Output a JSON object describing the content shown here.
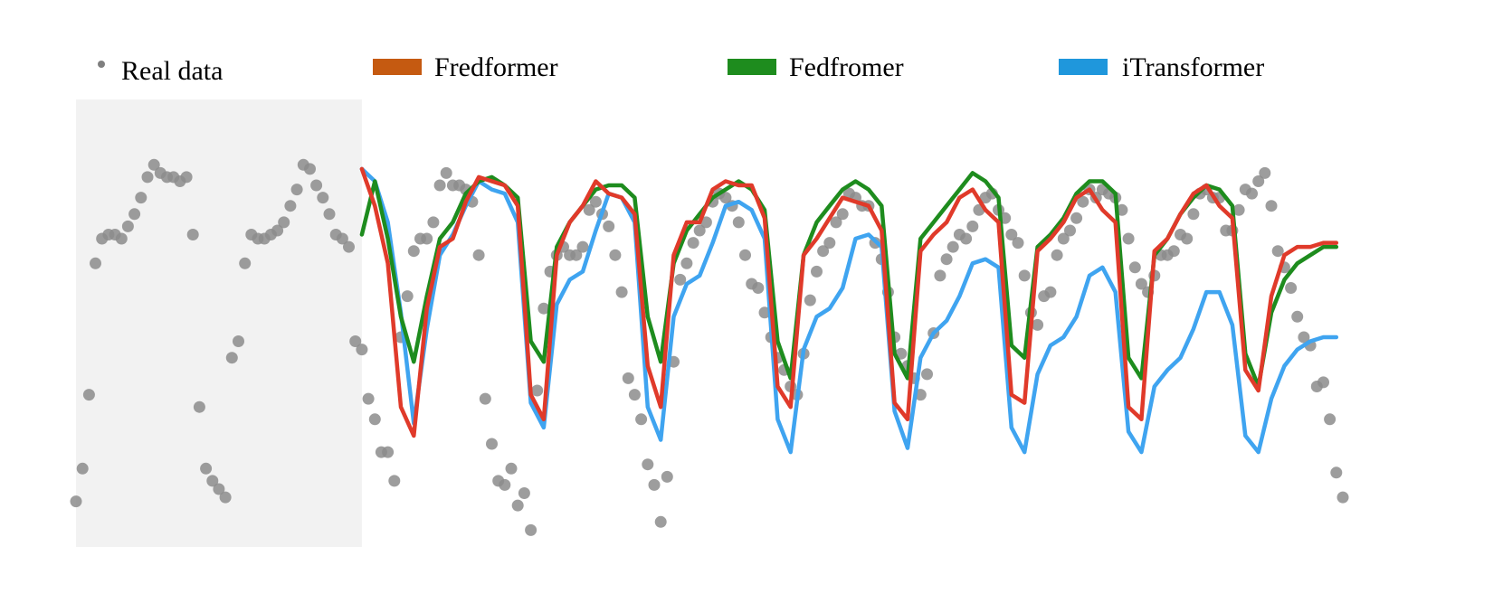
{
  "chart_data": {
    "type": "line",
    "title": "",
    "xlabel": "",
    "ylabel": "",
    "xlim": [
      0,
      195
    ],
    "ylim": [
      0,
      100
    ],
    "grid": false,
    "legend_position": "top",
    "lookback_region": {
      "x_start": 0,
      "x_end": 44,
      "color": "#f2f2f2"
    },
    "legend": [
      {
        "name": "Real data",
        "marker": "dot",
        "color": "#7f7f7f"
      },
      {
        "name": "Fredformer",
        "marker": "bar",
        "color": "#c55a11"
      },
      {
        "name": "Fedfromer",
        "marker": "bar",
        "color": "#1e8c1e"
      },
      {
        "name": "iTransformer",
        "marker": "bar",
        "color": "#1f97dc"
      }
    ],
    "real_data": {
      "name": "Real data",
      "color": "#7f7f7f",
      "x": [
        0,
        1,
        2,
        3,
        4,
        5,
        6,
        7,
        8,
        9,
        10,
        11,
        12,
        13,
        14,
        15,
        16,
        17,
        18,
        19,
        20,
        21,
        22,
        23,
        24,
        25,
        26,
        27,
        28,
        29,
        30,
        31,
        32,
        33,
        34,
        35,
        36,
        37,
        38,
        39,
        40,
        41,
        42,
        43,
        44,
        45,
        46,
        47,
        48,
        49,
        50,
        51,
        52,
        53,
        54,
        55,
        56,
        57,
        58,
        59,
        60,
        61,
        62,
        63,
        64,
        65,
        66,
        67,
        68,
        69,
        70,
        71,
        72,
        73,
        74,
        75,
        76,
        77,
        78,
        79,
        80,
        81,
        82,
        83,
        84,
        85,
        86,
        87,
        88,
        89,
        90,
        91,
        92,
        93,
        94,
        95,
        96,
        97,
        98,
        99,
        100,
        101,
        102,
        103,
        104,
        105,
        106,
        107,
        108,
        109,
        110,
        111,
        112,
        113,
        114,
        115,
        116,
        117,
        118,
        119,
        120,
        121,
        122,
        123,
        124,
        125,
        126,
        127,
        128,
        129,
        130,
        131,
        132,
        133,
        134,
        135,
        136,
        137,
        138,
        139,
        140,
        141,
        142,
        143,
        144,
        145,
        146,
        147,
        148,
        149,
        150,
        151,
        152,
        153,
        154,
        155,
        156,
        157,
        158,
        159,
        160,
        161,
        162,
        163,
        164,
        165,
        166,
        167,
        168,
        169,
        170,
        171,
        172,
        173,
        174,
        175,
        176,
        177,
        178,
        179,
        180,
        181,
        182,
        183,
        184,
        185,
        186,
        187,
        188,
        189,
        190,
        191,
        192,
        193,
        194,
        195
      ],
      "values": [
        10,
        18,
        36,
        68,
        74,
        75,
        75,
        74,
        77,
        80,
        84,
        89,
        92,
        90,
        89,
        89,
        88,
        89,
        75,
        33,
        18,
        15,
        13,
        11,
        45,
        49,
        68,
        75,
        74,
        74,
        75,
        76,
        78,
        82,
        86,
        92,
        91,
        87,
        84,
        80,
        75,
        74,
        72,
        49,
        47,
        35,
        30,
        22,
        22,
        15,
        50,
        60,
        71,
        74,
        74,
        78,
        87,
        90,
        87,
        87,
        86,
        83,
        70,
        35,
        24,
        15,
        14,
        18,
        9,
        12,
        3,
        37,
        57,
        66,
        70,
        72,
        70,
        70,
        72,
        81,
        83,
        80,
        77,
        70,
        61,
        40,
        36,
        30,
        19,
        14,
        5,
        16,
        44,
        64,
        68,
        73,
        76,
        78,
        83,
        85,
        84,
        82,
        78,
        70,
        63,
        62,
        56,
        50,
        45,
        42,
        38,
        36,
        46,
        59,
        66,
        71,
        73,
        78,
        80,
        85,
        84,
        82,
        82,
        73,
        69,
        61,
        50,
        46,
        43,
        40,
        36,
        41,
        51,
        65,
        69,
        72,
        75,
        74,
        77,
        81,
        84,
        85,
        81,
        79,
        75,
        73,
        65,
        56,
        53,
        60,
        61,
        70,
        74,
        76,
        79,
        83,
        86,
        84,
        86,
        85,
        84,
        81,
        74,
        67,
        63,
        61,
        65,
        70,
        70,
        71,
        75,
        74,
        80,
        85,
        86,
        84,
        84,
        76,
        76,
        81,
        86,
        85,
        88,
        90,
        82,
        71,
        67,
        62,
        55,
        50,
        48,
        38,
        39,
        30,
        17,
        11
      ],
      "count_shown": 196
    },
    "series": [
      {
        "name": "Fredformer",
        "color": "#e03a2a",
        "x": [
          44,
          46,
          48,
          50,
          52,
          54,
          56,
          58,
          60,
          62,
          64,
          66,
          68,
          70,
          72,
          74,
          76,
          78,
          80,
          82,
          84,
          86,
          88,
          90,
          92,
          94,
          96,
          98,
          100,
          102,
          104,
          106,
          108,
          110,
          112,
          114,
          116,
          118,
          120,
          122,
          124,
          126,
          128,
          130,
          132,
          134,
          136,
          138,
          140,
          142,
          144,
          146,
          148,
          150,
          152,
          154,
          156,
          158,
          160,
          162,
          164,
          166,
          168,
          170,
          172,
          174,
          176,
          178,
          180,
          182,
          184,
          186,
          188,
          190,
          192,
          194
        ],
        "values": [
          91,
          82,
          68,
          33,
          26,
          57,
          72,
          74,
          83,
          89,
          88,
          87,
          82,
          36,
          30,
          70,
          78,
          82,
          88,
          85,
          84,
          80,
          43,
          33,
          70,
          78,
          78,
          86,
          88,
          87,
          87,
          79,
          38,
          33,
          70,
          74,
          79,
          84,
          83,
          82,
          76,
          34,
          30,
          71,
          75,
          78,
          84,
          86,
          81,
          78,
          36,
          34,
          71,
          74,
          78,
          84,
          86,
          81,
          78,
          33,
          30,
          71,
          74,
          80,
          85,
          87,
          82,
          79,
          42,
          37,
          60,
          70,
          72,
          72,
          73,
          73
        ]
      },
      {
        "name": "Fedfromer",
        "color": "#1e8c1e",
        "x": [
          44,
          46,
          48,
          50,
          52,
          54,
          56,
          58,
          60,
          62,
          64,
          66,
          68,
          70,
          72,
          74,
          76,
          78,
          80,
          82,
          84,
          86,
          88,
          90,
          92,
          94,
          96,
          98,
          100,
          102,
          104,
          106,
          108,
          110,
          112,
          114,
          116,
          118,
          120,
          122,
          124,
          126,
          128,
          130,
          132,
          134,
          136,
          138,
          140,
          142,
          144,
          146,
          148,
          150,
          152,
          154,
          156,
          158,
          160,
          162,
          164,
          166,
          168,
          170,
          172,
          174,
          176,
          178,
          180,
          182,
          184,
          186,
          188,
          190,
          192,
          194
        ],
        "values": [
          75,
          88,
          74,
          55,
          44,
          60,
          74,
          78,
          85,
          88,
          89,
          87,
          84,
          49,
          44,
          72,
          78,
          82,
          86,
          87,
          87,
          84,
          55,
          44,
          68,
          76,
          80,
          84,
          86,
          88,
          86,
          81,
          49,
          40,
          70,
          78,
          82,
          86,
          88,
          86,
          82,
          46,
          40,
          74,
          78,
          82,
          86,
          90,
          88,
          84,
          48,
          45,
          72,
          75,
          79,
          85,
          88,
          88,
          85,
          45,
          40,
          70,
          74,
          80,
          84,
          87,
          86,
          82,
          46,
          38,
          56,
          64,
          68,
          70,
          72,
          72
        ]
      },
      {
        "name": "iTransformer",
        "color": "#3fa4f0",
        "x": [
          44,
          46,
          48,
          50,
          52,
          54,
          56,
          58,
          60,
          62,
          64,
          66,
          68,
          70,
          72,
          74,
          76,
          78,
          80,
          82,
          84,
          86,
          88,
          90,
          92,
          94,
          96,
          98,
          100,
          102,
          104,
          106,
          108,
          110,
          112,
          114,
          116,
          118,
          120,
          122,
          124,
          126,
          128,
          130,
          132,
          134,
          136,
          138,
          140,
          142,
          144,
          146,
          148,
          150,
          152,
          154,
          156,
          158,
          160,
          162,
          164,
          166,
          168,
          170,
          172,
          174,
          176,
          178,
          180,
          182,
          184,
          186,
          188,
          190,
          192,
          194
        ],
        "values": [
          91,
          88,
          78,
          56,
          29,
          52,
          70,
          75,
          82,
          88,
          86,
          85,
          78,
          34,
          28,
          58,
          64,
          66,
          76,
          85,
          84,
          78,
          33,
          25,
          55,
          63,
          65,
          73,
          82,
          83,
          81,
          74,
          30,
          22,
          47,
          55,
          57,
          62,
          74,
          75,
          72,
          32,
          23,
          45,
          51,
          54,
          60,
          68,
          69,
          67,
          28,
          22,
          41,
          48,
          50,
          55,
          65,
          67,
          61,
          27,
          22,
          38,
          42,
          45,
          52,
          61,
          61,
          53,
          26,
          22,
          35,
          43,
          47,
          49,
          50,
          50
        ]
      }
    ]
  }
}
